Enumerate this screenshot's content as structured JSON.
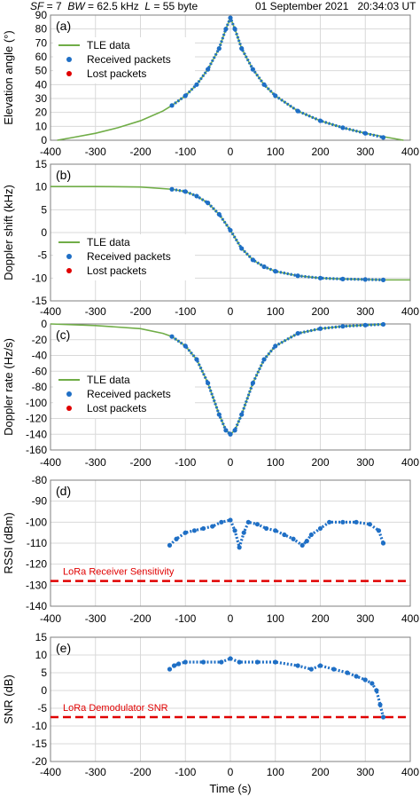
{
  "header": {
    "sf_label": "SF",
    "sf_value": " = 7",
    "bw_label": "BW",
    "bw_value": " = 62.5 kHz",
    "l_label": "L",
    "l_value": " = 55 byte",
    "date": "01 September 2021",
    "time": "20:34:03 UT"
  },
  "colors": {
    "tle": "#70ad47",
    "received": "#1f6fc5",
    "lost": "#e00000",
    "grid": "#d9d9d9",
    "threshold": "#e00000"
  },
  "chart_data": [
    {
      "type": "scatter",
      "panel": "(a)",
      "xlabel": "",
      "ylabel": "Elevation angle (°)",
      "xlim": [
        -400,
        400
      ],
      "ylim": [
        0,
        90
      ],
      "xticks": [
        "-400",
        "-300",
        "-200",
        "-100",
        "0",
        "100",
        "200",
        "300",
        "400"
      ],
      "yticks": [
        "0",
        "10",
        "20",
        "30",
        "40",
        "50",
        "60",
        "70",
        "80",
        "90"
      ],
      "legend": {
        "placement": "top-left",
        "entries": [
          "TLE data",
          "Received packets",
          "Lost packets"
        ]
      },
      "series": [
        {
          "name": "TLE data",
          "kind": "line",
          "x": [
            -385,
            -350,
            -300,
            -250,
            -200,
            -150,
            -130,
            -100,
            -75,
            -50,
            -25,
            -10,
            0,
            10,
            25,
            50,
            75,
            100,
            150,
            200,
            250,
            300,
            350,
            385
          ],
          "y": [
            0,
            2,
            5,
            9,
            14,
            21,
            25,
            32,
            40,
            51,
            66,
            80,
            88,
            80,
            66,
            51,
            40,
            32,
            21,
            14,
            9,
            5,
            2,
            0
          ]
        },
        {
          "name": "Received packets",
          "kind": "points",
          "x": [
            -130,
            -100,
            -75,
            -50,
            -25,
            -10,
            0,
            10,
            25,
            50,
            75,
            100,
            150,
            200,
            250,
            300,
            340
          ],
          "y": [
            25,
            32,
            40,
            51,
            66,
            80,
            88,
            80,
            66,
            51,
            40,
            32,
            21,
            14,
            9,
            5,
            2
          ]
        },
        {
          "name": "Lost packets",
          "kind": "points",
          "x": [],
          "y": []
        }
      ]
    },
    {
      "type": "scatter",
      "panel": "(b)",
      "xlabel": "",
      "ylabel": "Doppler shift (kHz)",
      "xlim": [
        -400,
        400
      ],
      "ylim": [
        -15,
        15
      ],
      "xticks": [
        "-400",
        "-300",
        "-200",
        "-100",
        "0",
        "100",
        "200",
        "300",
        "400"
      ],
      "yticks": [
        "-15",
        "-10",
        "-5",
        "0",
        "5",
        "10",
        "15"
      ],
      "legend": {
        "placement": "bottom-left",
        "entries": [
          "TLE data",
          "Received packets",
          "Lost packets"
        ]
      },
      "series": [
        {
          "name": "TLE data",
          "kind": "line",
          "x": [
            -400,
            -300,
            -200,
            -130,
            -100,
            -75,
            -50,
            -25,
            0,
            25,
            50,
            75,
            100,
            150,
            200,
            250,
            300,
            340,
            400
          ],
          "y": [
            10.1,
            10.1,
            10,
            9.5,
            9,
            8,
            6.5,
            4,
            0.5,
            -3.5,
            -6,
            -7.5,
            -8.5,
            -9.5,
            -10,
            -10.2,
            -10.3,
            -10.4,
            -10.4
          ]
        },
        {
          "name": "Received packets",
          "kind": "points",
          "x": [
            -130,
            -100,
            -75,
            -50,
            -25,
            0,
            25,
            50,
            75,
            100,
            150,
            200,
            250,
            300,
            340
          ],
          "y": [
            9.5,
            9,
            8,
            6.5,
            4,
            0.5,
            -3.5,
            -6,
            -7.5,
            -8.5,
            -9.5,
            -10,
            -10.2,
            -10.3,
            -10.4
          ]
        },
        {
          "name": "Lost packets",
          "kind": "points",
          "x": [],
          "y": []
        }
      ]
    },
    {
      "type": "scatter",
      "panel": "(c)",
      "xlabel": "",
      "ylabel": "Doppler rate (Hz/s)",
      "xlim": [
        -400,
        400
      ],
      "ylim": [
        -160,
        0
      ],
      "xticks": [
        "-400",
        "-300",
        "-200",
        "-100",
        "0",
        "100",
        "200",
        "300",
        "400"
      ],
      "yticks": [
        "-160",
        "-140",
        "-120",
        "-100",
        "-80",
        "-60",
        "-40",
        "-20",
        "0"
      ],
      "legend": {
        "placement": "bottom-left",
        "entries": [
          "TLE data",
          "Received packets",
          "Lost packets"
        ]
      },
      "series": [
        {
          "name": "TLE data",
          "kind": "line",
          "x": [
            -400,
            -300,
            -200,
            -150,
            -130,
            -100,
            -75,
            -50,
            -25,
            -10,
            0,
            10,
            25,
            50,
            75,
            100,
            150,
            200,
            250,
            300,
            340
          ],
          "y": [
            0,
            -2,
            -6,
            -12,
            -16,
            -28,
            -45,
            -75,
            -115,
            -135,
            -140,
            -135,
            -115,
            -75,
            -45,
            -28,
            -12,
            -6,
            -3,
            -1.5,
            -0.5
          ]
        },
        {
          "name": "Received packets",
          "kind": "points",
          "x": [
            -130,
            -100,
            -75,
            -50,
            -25,
            -10,
            0,
            10,
            25,
            50,
            75,
            100,
            150,
            200,
            250,
            300,
            340
          ],
          "y": [
            -16,
            -28,
            -45,
            -75,
            -115,
            -135,
            -140,
            -135,
            -115,
            -75,
            -45,
            -28,
            -12,
            -6,
            -3,
            -1.5,
            -0.5
          ]
        },
        {
          "name": "Lost packets",
          "kind": "points",
          "x": [],
          "y": []
        }
      ]
    },
    {
      "type": "scatter",
      "panel": "(d)",
      "xlabel": "",
      "ylabel": "RSSI (dBm)",
      "xlim": [
        -400,
        400
      ],
      "ylim": [
        -140,
        -80
      ],
      "xticks": [
        "-400",
        "-300",
        "-200",
        "-100",
        "0",
        "100",
        "200",
        "300",
        "400"
      ],
      "yticks": [
        "-140",
        "-130",
        "-120",
        "-110",
        "-100",
        "-90",
        "-80"
      ],
      "threshold": {
        "label": "LoRa Receiver Sensitivity",
        "value": -128
      },
      "series": [
        {
          "name": "Received packets",
          "kind": "points",
          "x": [
            -135,
            -120,
            -100,
            -80,
            -60,
            -40,
            -20,
            0,
            10,
            20,
            30,
            40,
            60,
            80,
            100,
            120,
            140,
            160,
            170,
            180,
            200,
            220,
            250,
            280,
            310,
            330,
            340
          ],
          "y": [
            -111,
            -108,
            -105,
            -104,
            -103,
            -102,
            -100,
            -99,
            -104,
            -112,
            -105,
            -100,
            -101,
            -103,
            -104,
            -106,
            -108,
            -111,
            -109,
            -106,
            -103,
            -100,
            -100,
            -100,
            -101,
            -104,
            -110
          ]
        }
      ]
    },
    {
      "type": "scatter",
      "panel": "(e)",
      "xlabel": "Time (s)",
      "ylabel": "SNR (dB)",
      "xlim": [
        -400,
        400
      ],
      "ylim": [
        -20,
        15
      ],
      "xticks": [
        "-400",
        "-300",
        "-200",
        "-100",
        "0",
        "100",
        "200",
        "300",
        "400"
      ],
      "yticks": [
        "-20",
        "-15",
        "-10",
        "-5",
        "0",
        "5",
        "10",
        "15"
      ],
      "threshold": {
        "label": "LoRa Demodulator SNR",
        "value": -7.5
      },
      "series": [
        {
          "name": "Received packets",
          "kind": "points",
          "x": [
            -135,
            -125,
            -115,
            -100,
            -60,
            -20,
            0,
            20,
            60,
            100,
            150,
            180,
            200,
            230,
            260,
            280,
            300,
            315,
            325,
            333,
            340
          ],
          "y": [
            6,
            7,
            7.5,
            8,
            8,
            8,
            9,
            8,
            8,
            8,
            7,
            6,
            7,
            6,
            5,
            4,
            3,
            2,
            0,
            -4,
            -7.5
          ]
        }
      ]
    }
  ]
}
